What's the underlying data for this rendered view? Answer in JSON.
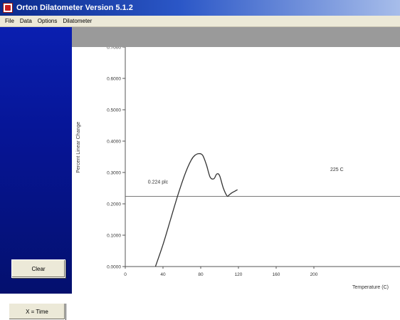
{
  "window": {
    "title": "Orton Dilatometer Version 5.1.2",
    "icon": "app-icon"
  },
  "menu": {
    "items": [
      "File",
      "Data",
      "Options",
      "Dilatometer"
    ]
  },
  "sidebar": {
    "clear_label": "Clear",
    "x_time_label": "X = Time"
  },
  "colors": {
    "sidebar": "#061596",
    "titlebar": "#0a2a8c",
    "curve": "#333333"
  },
  "chart_data": {
    "type": "line",
    "xlabel": "Temperature (C)",
    "ylabel": "Percent Linear Change",
    "xlim": [
      0,
      225
    ],
    "ylim": [
      0,
      0.7
    ],
    "x_ticks": [
      "0",
      "40",
      "80",
      "120",
      "160",
      "200"
    ],
    "y_ticks": [
      "0.0000",
      "0.1000",
      "0.2000",
      "0.3000",
      "0.4000",
      "0.5000",
      "0.6000",
      "0.7000"
    ],
    "series": [
      {
        "x": [
          32,
          40,
          48,
          56,
          64,
          70,
          74,
          78,
          82,
          86,
          90,
          94,
          97,
          100,
          104,
          108,
          110,
          113,
          116,
          119
        ],
        "y": [
          0.0,
          0.07,
          0.15,
          0.23,
          0.3,
          0.34,
          0.355,
          0.36,
          0.355,
          0.325,
          0.285,
          0.28,
          0.295,
          0.29,
          0.25,
          0.225,
          0.228,
          0.235,
          0.24,
          0.245
        ]
      }
    ],
    "hline": {
      "y": 0.224,
      "label": "0.224 plc"
    },
    "annotation": {
      "label": "225 C"
    },
    "grid": false
  }
}
